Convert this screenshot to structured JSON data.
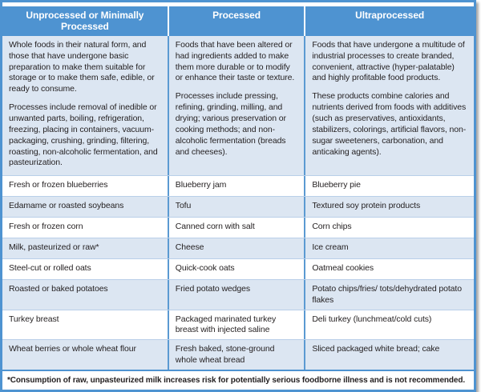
{
  "table": {
    "columns": [
      {
        "header": "Unprocessed or Minimally Processed",
        "description": [
          "Whole foods in their natural form, and those that have undergone basic preparation to make them suitable for storage or to make them safe, edible, or ready to consume.",
          "Processes include removal of inedible or unwanted parts, boiling, refrigeration, freezing, placing in containers, vacuum-packaging, crushing, grinding, filtering, roasting, non-alcoholic fermentation, and pasteurization."
        ]
      },
      {
        "header": "Processed",
        "description": [
          "Foods that have been altered or had ingredients added to make them more durable or to modify or enhance their taste or texture.",
          "Processes include pressing, refining, grinding, milling, and drying; various preservation or cooking methods; and non-alcoholic fermentation (breads and cheeses)."
        ]
      },
      {
        "header": "Ultraprocessed",
        "description": [
          "Foods that have undergone a multitude of industrial processes to create branded, convenient, attractive (hyper-palatable) and highly profitable food products.",
          "These products combine calories and nutrients derived from foods with additives (such as preservatives, antioxidants, stabilizers, colorings, artificial flavors, non-sugar sweeteners, carbonation, and anticaking agents)."
        ]
      }
    ],
    "rows": [
      [
        "Fresh or frozen blueberries",
        "Blueberry jam",
        "Blueberry pie"
      ],
      [
        "Edamame or roasted soybeans",
        "Tofu",
        "Textured soy protein products"
      ],
      [
        "Fresh or frozen corn",
        "Canned corn with salt",
        "Corn chips"
      ],
      [
        "Milk, pasteurized or raw*",
        "Cheese",
        "Ice cream"
      ],
      [
        "Steel-cut or rolled oats",
        "Quick-cook oats",
        "Oatmeal cookies"
      ],
      [
        "Roasted or baked potatoes",
        "Fried potato wedges",
        "Potato chips/fries/ tots/dehydrated potato flakes"
      ],
      [
        "Turkey breast",
        "Packaged marinated turkey breast with injected saline",
        "Deli turkey (lunchmeat/cold cuts)"
      ],
      [
        "Wheat berries or whole wheat flour",
        "Fresh baked, stone-ground whole wheat bread",
        "Sliced packaged white bread; cake"
      ]
    ],
    "footnote": "*Consumption of raw, unpasteurized milk increases risk for potentially serious foodborne illness and is not recommended.",
    "colors": {
      "header_bg": "#4E93D1",
      "border_blue": "#4E93D1",
      "row_alt_bg": "#DCE6F2",
      "row_bg": "#FFFFFF",
      "text": "#231F20",
      "header_text": "#FFFFFF"
    }
  }
}
